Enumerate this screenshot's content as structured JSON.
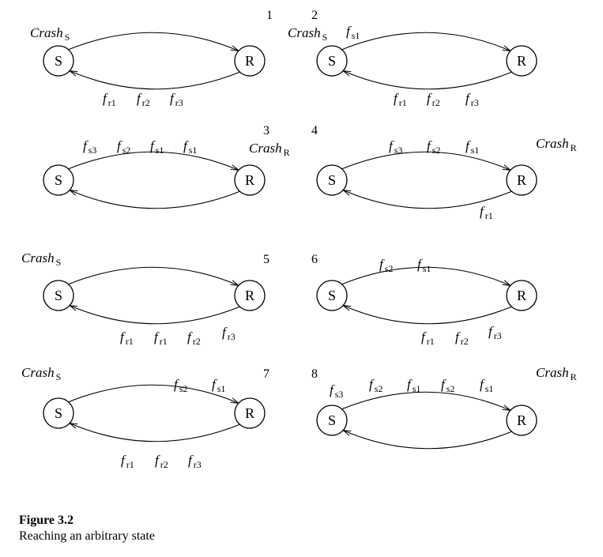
{
  "panel_numbers": [
    "1",
    "2",
    "3",
    "4",
    "5",
    "6",
    "7",
    "8"
  ],
  "node_labels": {
    "sender": "S",
    "receiver": "R"
  },
  "crash": {
    "base": "Crash",
    "sender_sub": "S",
    "receiver_sub": "R"
  },
  "frame": {
    "base": "f",
    "sub_s1": "s1",
    "sub_s2": "s2",
    "sub_s3": "s3",
    "sub_r1": "r1",
    "sub_r2": "r2",
    "sub_r3": "r3"
  },
  "caption": {
    "title": "Figure 3.2",
    "text": "Reaching an arbitrary state"
  },
  "panels": [
    {
      "id": 1,
      "crash": "S",
      "top": [],
      "bottom": [
        "r1",
        "r2",
        "r3"
      ]
    },
    {
      "id": 2,
      "crash": "S",
      "top": [
        "s1"
      ],
      "bottom": [
        "r1",
        "r2",
        "r3"
      ]
    },
    {
      "id": 3,
      "crash": "R",
      "top": [
        "s3",
        "s2",
        "s1",
        "s1"
      ],
      "bottom": []
    },
    {
      "id": 4,
      "crash": "R",
      "top": [
        "s3",
        "s2",
        "s1"
      ],
      "bottom": [
        "r1"
      ]
    },
    {
      "id": 5,
      "crash": "S",
      "top": [],
      "bottom": [
        "r1",
        "r1",
        "r2",
        "r3"
      ]
    },
    {
      "id": 6,
      "crash": "",
      "top": [
        "s2",
        "s1"
      ],
      "bottom": [
        "r1",
        "r2",
        "r3"
      ]
    },
    {
      "id": 7,
      "crash": "S",
      "top": [
        "s2",
        "s1"
      ],
      "bottom": [
        "r1",
        "r2",
        "r3"
      ]
    },
    {
      "id": 8,
      "crash": "R",
      "top": [
        "s3",
        "s2",
        "s1",
        "s2",
        "s1"
      ],
      "bottom": []
    }
  ]
}
